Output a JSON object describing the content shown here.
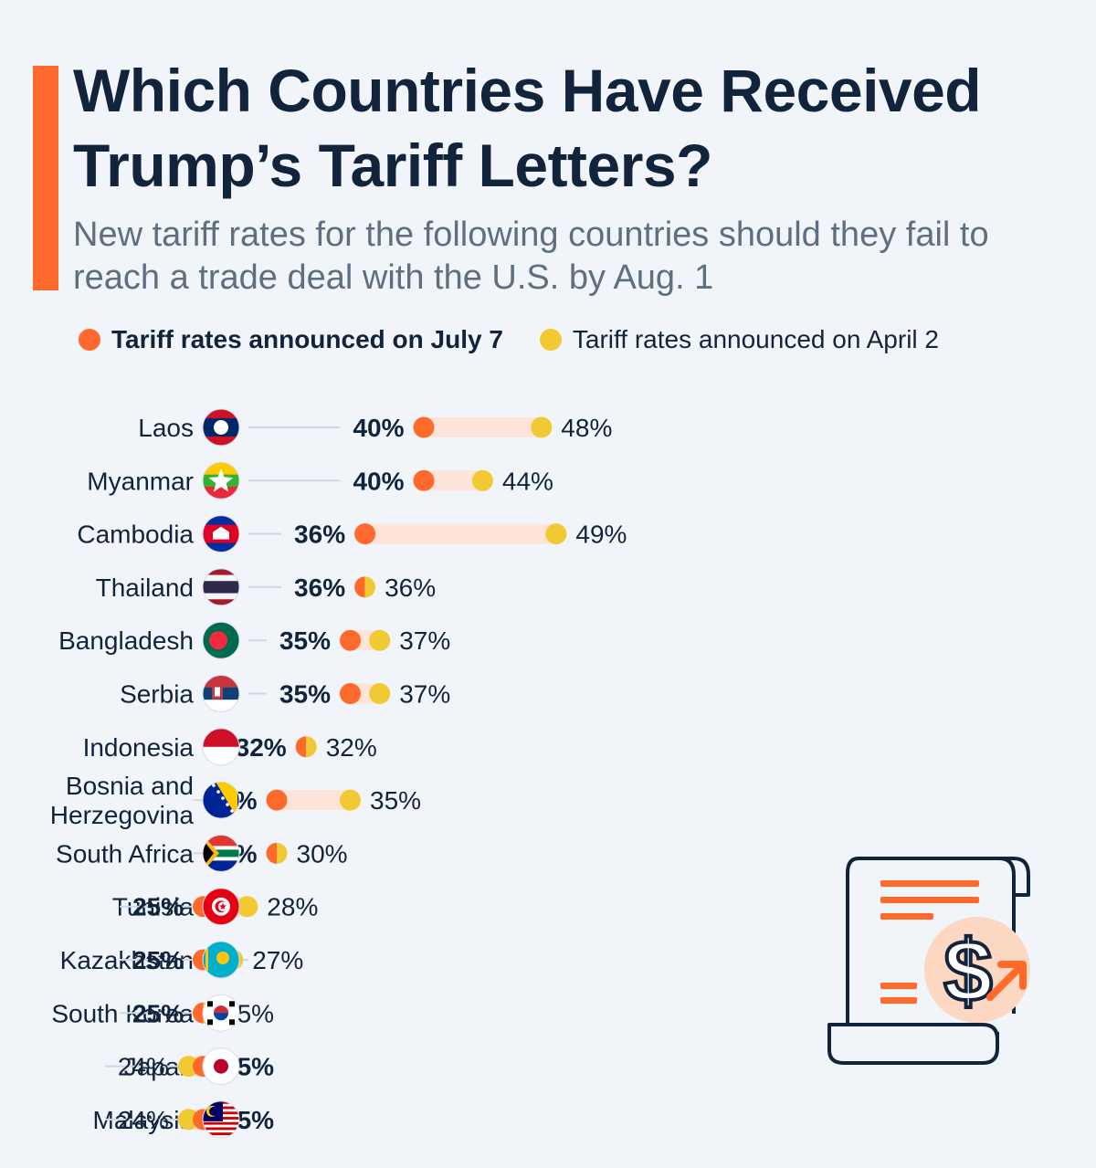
{
  "title": "Which Countries Have Received Trump’s Tariff Letters?",
  "subtitle": "New tariff rates for the following countries should they fail to reach a trade deal with the U.S. by Aug. 1",
  "legend": {
    "july": "Tariff rates announced on July 7",
    "april": "Tariff rates announced on April 2"
  },
  "colors": {
    "july": "#ff6a2c",
    "april": "#f1c933",
    "range": "#fde3d8",
    "line": "#cfd8e2",
    "text": "#11243c",
    "accent": "#ff6a2c"
  },
  "icon": "tariff-document-dollar-icon",
  "chart_data": {
    "type": "dot-range",
    "unit": "%",
    "series": [
      {
        "name": "Tariff rates announced on July 7",
        "key": "july"
      },
      {
        "name": "Tariff rates announced on April 2",
        "key": "april"
      }
    ],
    "categories": [
      "Laos",
      "Myanmar",
      "Cambodia",
      "Thailand",
      "Bangladesh",
      "Serbia",
      "Indonesia",
      "Bosnia and Herzegovina",
      "South Africa",
      "Tunisia",
      "Kazakhstan",
      "South Korea",
      "Japan",
      "Malaysia"
    ],
    "rows": [
      {
        "country": "Laos",
        "lines": [
          "Laos"
        ],
        "flag": "laos",
        "july": 40,
        "april": 48,
        "july_label": "40%",
        "april_label": "48%"
      },
      {
        "country": "Myanmar",
        "lines": [
          "Myanmar"
        ],
        "flag": "myanmar",
        "july": 40,
        "april": 44,
        "july_label": "40%",
        "april_label": "44%"
      },
      {
        "country": "Cambodia",
        "lines": [
          "Cambodia"
        ],
        "flag": "cambodia",
        "july": 36,
        "april": 49,
        "july_label": "36%",
        "april_label": "49%"
      },
      {
        "country": "Thailand",
        "lines": [
          "Thailand"
        ],
        "flag": "thailand",
        "july": 36,
        "april": 36,
        "july_label": "36%",
        "april_label": "36%"
      },
      {
        "country": "Bangladesh",
        "lines": [
          "Bangladesh"
        ],
        "flag": "bangladesh",
        "july": 35,
        "april": 37,
        "july_label": "35%",
        "april_label": "37%"
      },
      {
        "country": "Serbia",
        "lines": [
          "Serbia"
        ],
        "flag": "serbia",
        "july": 35,
        "april": 37,
        "july_label": "35%",
        "april_label": "37%"
      },
      {
        "country": "Indonesia",
        "lines": [
          "Indonesia"
        ],
        "flag": "indonesia",
        "july": 32,
        "april": 32,
        "july_label": "32%",
        "april_label": "32%"
      },
      {
        "country": "Bosnia and Herzegovina",
        "lines": [
          "Bosnia and",
          "Herzegovina"
        ],
        "flag": "bosnia",
        "july": 30,
        "april": 35,
        "july_label": "30%",
        "april_label": "35%"
      },
      {
        "country": "South Africa",
        "lines": [
          "South Africa"
        ],
        "flag": "southafrica",
        "july": 30,
        "april": 30,
        "july_label": "30%",
        "april_label": "30%"
      },
      {
        "country": "Tunisia",
        "lines": [
          "Tunisia"
        ],
        "flag": "tunisia",
        "july": 25,
        "april": 28,
        "july_label": "25%",
        "april_label": "28%"
      },
      {
        "country": "Kazakhstan",
        "lines": [
          "Kazakhstan"
        ],
        "flag": "kazakhstan",
        "july": 25,
        "april": 27,
        "july_label": "25%",
        "april_label": "27%"
      },
      {
        "country": "South Korea",
        "lines": [
          "South Korea"
        ],
        "flag": "southkorea",
        "july": 25,
        "april": 25,
        "july_label": "25%",
        "april_label": "25%"
      },
      {
        "country": "Japan",
        "lines": [
          "Japan"
        ],
        "flag": "japan",
        "july": 25,
        "april": 24,
        "july_label": "25%",
        "april_label": "24%"
      },
      {
        "country": "Malaysia",
        "lines": [
          "Malaysia"
        ],
        "flag": "malaysia",
        "july": 25,
        "april": 24,
        "july_label": "25%",
        "april_label": "24%"
      }
    ]
  }
}
